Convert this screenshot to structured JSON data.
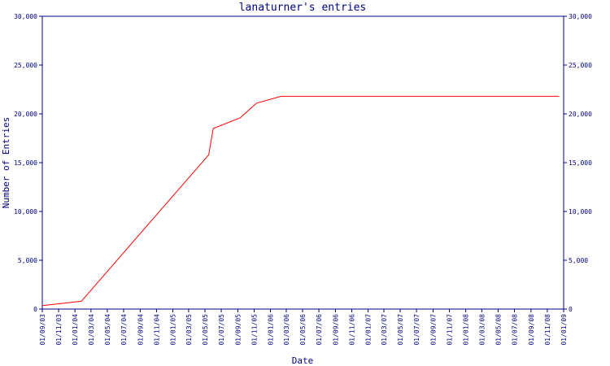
{
  "chart_data": {
    "type": "line",
    "title": "lanaturner's entries",
    "xlabel": "Date",
    "ylabel": "Number of Entries",
    "xlim": [
      "01/09/03",
      "01/01/09"
    ],
    "xticks": [
      "01/09/03",
      "01/11/03",
      "01/01/04",
      "01/03/04",
      "01/05/04",
      "01/07/04",
      "01/09/04",
      "01/11/04",
      "01/01/05",
      "01/03/05",
      "01/05/05",
      "01/07/05",
      "01/09/05",
      "01/11/05",
      "01/01/06",
      "01/03/06",
      "01/05/06",
      "01/07/06",
      "01/09/06",
      "01/11/06",
      "01/01/07",
      "01/03/07",
      "01/05/07",
      "01/07/07",
      "01/09/07",
      "01/11/07",
      "01/01/08",
      "01/03/08",
      "01/05/08",
      "01/07/08",
      "01/09/08",
      "01/11/08",
      "01/01/09"
    ],
    "ylim": [
      0,
      30000
    ],
    "yticks": [
      0,
      {
        "value": 5000,
        "label": "5,000"
      },
      {
        "value": 10000,
        "label": "10,000"
      },
      {
        "value": 15000,
        "label": "15,000"
      },
      {
        "value": 20000,
        "label": "20,000"
      },
      {
        "value": 25000,
        "label": "25,000"
      },
      {
        "value": 30000,
        "label": "30,000"
      }
    ],
    "series": [
      {
        "name": "entries",
        "color": "#ff0000",
        "x": [
          "01/09/03",
          "25/01/04",
          "15/05/05",
          "01/06/05",
          "10/09/05",
          "10/11/05",
          "10/02/06",
          "15/12/08"
        ],
        "values": [
          350,
          800,
          15800,
          18500,
          19600,
          21100,
          21800,
          21800
        ]
      }
    ]
  }
}
